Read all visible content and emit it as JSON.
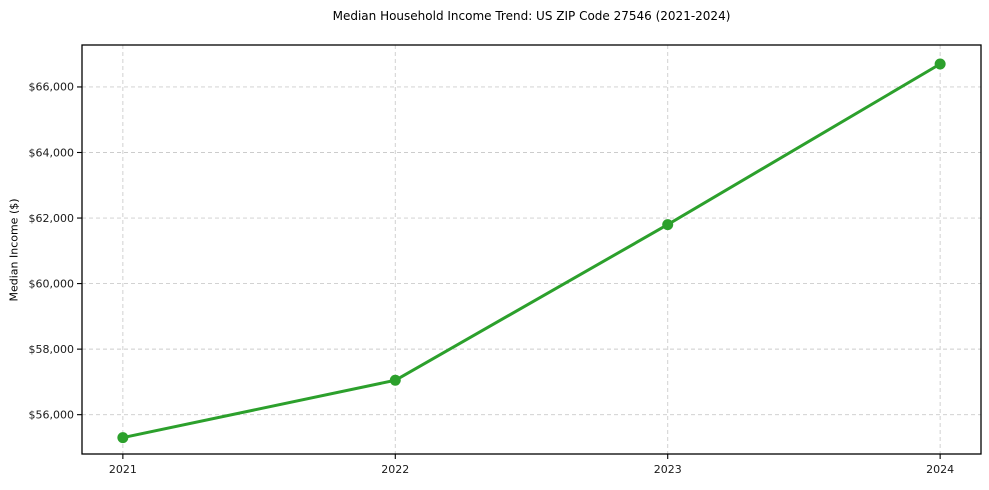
{
  "chart": {
    "title": "Median Household Income Trend: US ZIP Code 27546 (2021-2024)",
    "ylabel": "Median Income ($)"
  },
  "chart_data": {
    "type": "line",
    "title": "Median Household Income Trend: US ZIP Code 27546 (2021-2024)",
    "xlabel": "",
    "ylabel": "Median Income ($)",
    "x": [
      2021,
      2022,
      2023,
      2024
    ],
    "xticklabels": [
      "2021",
      "2022",
      "2023",
      "2024"
    ],
    "values": [
      55300,
      57050,
      61800,
      66700
    ],
    "yticks": [
      56000,
      58000,
      60000,
      62000,
      64000,
      66000
    ],
    "yticklabels": [
      "$56,000",
      "$58,000",
      "$60,000",
      "$62,000",
      "$64,000",
      "$66,000"
    ],
    "xlim": [
      2020.85,
      2024.15
    ],
    "ylim": [
      54800,
      67280
    ],
    "grid": true,
    "grid_style": "dashed",
    "legend": "none",
    "line_color": "#2ca02c",
    "marker": "o",
    "marker_radius": 5.5,
    "line_width": 3,
    "grid_color": "#cccccc",
    "frame_color": "#000000",
    "tick_label_color": "#1a1a1a",
    "background": "#ffffff"
  }
}
